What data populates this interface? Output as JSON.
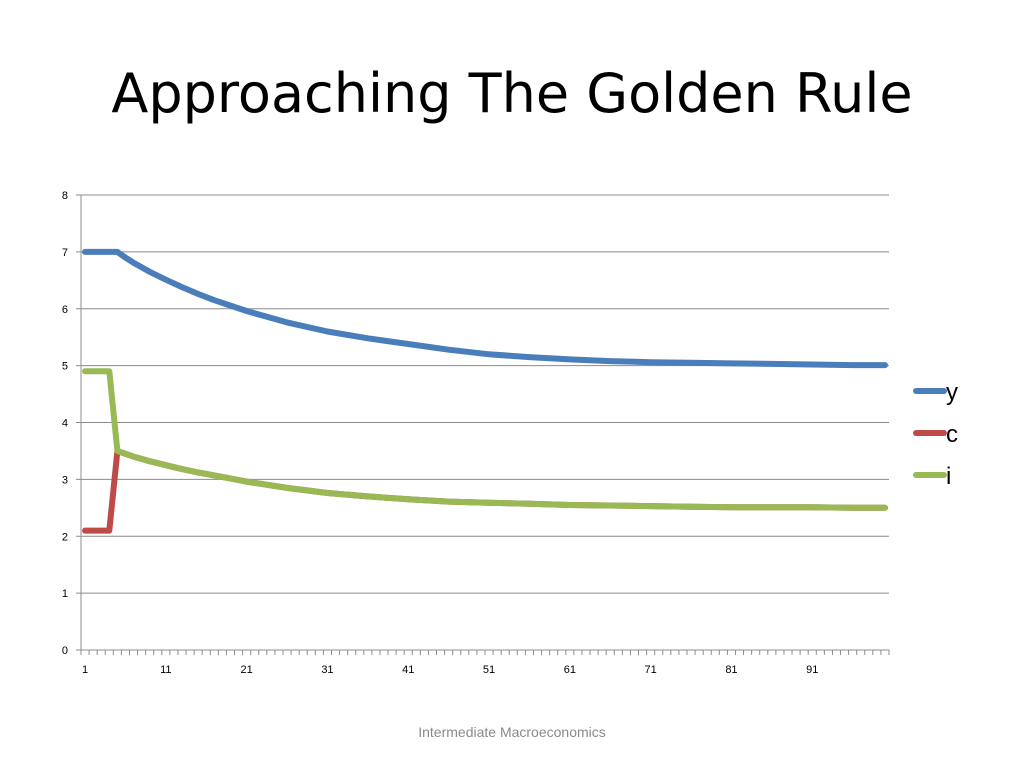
{
  "slide": {
    "title": "Approaching The Golden Rule",
    "footer": "Intermediate Macroeconomics"
  },
  "chart_data": {
    "type": "line",
    "title": "",
    "xlabel": "",
    "ylabel": "",
    "x_range": [
      1,
      100
    ],
    "x_tick_labels": [
      "1",
      "11",
      "21",
      "31",
      "41",
      "51",
      "61",
      "71",
      "81",
      "91"
    ],
    "ylim": [
      0,
      8
    ],
    "y_tick_labels": [
      "0",
      "1",
      "2",
      "3",
      "4",
      "5",
      "6",
      "7",
      "8"
    ],
    "grid": true,
    "legend_position": "right",
    "series": [
      {
        "name": "y",
        "color": "#4a7ebb",
        "x": [
          1,
          2,
          3,
          4,
          5,
          6,
          7,
          9,
          11,
          13,
          15,
          17,
          21,
          26,
          31,
          36,
          41,
          46,
          51,
          56,
          61,
          66,
          71,
          76,
          81,
          86,
          91,
          96,
          100
        ],
        "y": [
          7.0,
          7.0,
          7.0,
          7.0,
          7.0,
          6.9,
          6.81,
          6.65,
          6.51,
          6.38,
          6.26,
          6.15,
          5.96,
          5.76,
          5.6,
          5.48,
          5.38,
          5.28,
          5.2,
          5.15,
          5.11,
          5.08,
          5.06,
          5.05,
          5.04,
          5.03,
          5.02,
          5.01,
          5.01
        ]
      },
      {
        "name": "c",
        "color": "#be4b48",
        "x": [
          1,
          2,
          3,
          4,
          5,
          6,
          7,
          9,
          11,
          13,
          15,
          17,
          21,
          26,
          31,
          36,
          41,
          46,
          51,
          56,
          61,
          66,
          71,
          76,
          81,
          86,
          91,
          96,
          100
        ],
        "y": [
          2.1,
          2.1,
          2.1,
          2.1,
          3.5,
          3.45,
          3.4,
          3.32,
          3.25,
          3.18,
          3.12,
          3.07,
          2.96,
          2.85,
          2.76,
          2.7,
          2.65,
          2.61,
          2.59,
          2.57,
          2.55,
          2.54,
          2.53,
          2.52,
          2.51,
          2.51,
          2.51,
          2.5,
          2.5
        ]
      },
      {
        "name": "i",
        "color": "#98b954",
        "x": [
          1,
          2,
          3,
          4,
          5,
          6,
          7,
          9,
          11,
          13,
          15,
          17,
          21,
          26,
          31,
          36,
          41,
          46,
          51,
          56,
          61,
          66,
          71,
          76,
          81,
          86,
          91,
          96,
          100
        ],
        "y": [
          4.9,
          4.9,
          4.9,
          4.9,
          3.5,
          3.45,
          3.4,
          3.32,
          3.25,
          3.18,
          3.12,
          3.07,
          2.96,
          2.85,
          2.76,
          2.7,
          2.65,
          2.61,
          2.59,
          2.57,
          2.55,
          2.54,
          2.53,
          2.52,
          2.51,
          2.51,
          2.51,
          2.5,
          2.5
        ]
      }
    ]
  }
}
